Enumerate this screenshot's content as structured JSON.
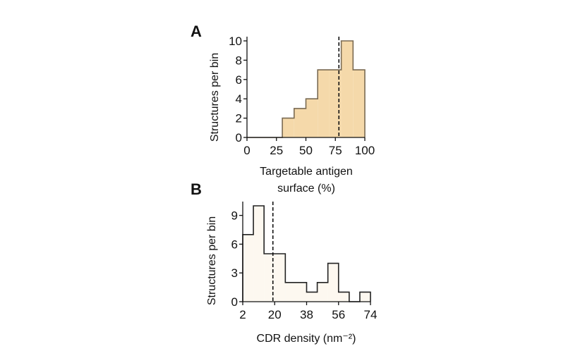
{
  "chart_data": [
    {
      "panel": "A",
      "type": "histogram",
      "xlabel_lines": [
        "Targetable antigen",
        "surface (%)"
      ],
      "ylabel": "Structures per bin",
      "xlim": [
        0,
        100
      ],
      "ylim": [
        0,
        10
      ],
      "xticks": [
        "0",
        "25",
        "50",
        "75",
        "100"
      ],
      "yticks": [
        "0",
        "2",
        "4",
        "6",
        "8",
        "10"
      ],
      "bin_edges": [
        0,
        10,
        20,
        30,
        40,
        50,
        60,
        70,
        80,
        90,
        100
      ],
      "counts": [
        0,
        0,
        0,
        2,
        3,
        4,
        7,
        7,
        10,
        7
      ],
      "vline": 78,
      "fill": "#f5d9aa",
      "edge": "#7a6a52"
    },
    {
      "panel": "B",
      "type": "histogram",
      "xlabel": "CDR density (nm⁻²)",
      "ylabel": "Structures per bin",
      "xlim": [
        2,
        74
      ],
      "ylim": [
        0,
        10
      ],
      "xticks": [
        "2",
        "20",
        "38",
        "56",
        "74"
      ],
      "yticks": [
        "0",
        "3",
        "6",
        "9"
      ],
      "bin_edges": [
        2,
        8,
        14,
        20,
        26,
        32,
        38,
        44,
        50,
        56,
        62,
        68,
        74
      ],
      "counts": [
        7,
        10,
        5,
        5,
        2,
        2,
        1,
        2,
        4,
        1,
        0,
        1
      ],
      "vline": 19,
      "fill": "#fdf8f0",
      "edge": "#222222"
    }
  ]
}
